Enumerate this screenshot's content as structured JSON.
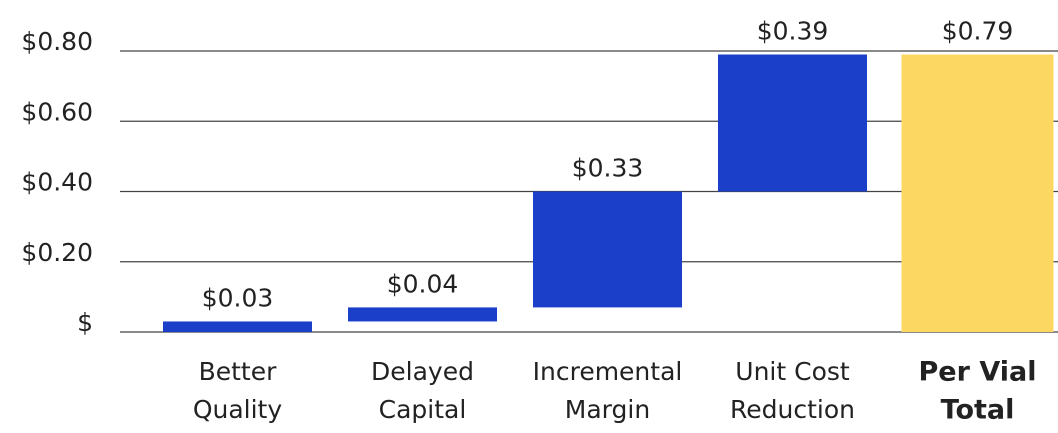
{
  "chart_data": {
    "type": "waterfall",
    "categories": [
      [
        "Better",
        "Quality"
      ],
      [
        "Delayed",
        "Capital"
      ],
      [
        "Incremental",
        "Margin"
      ],
      [
        "Unit Cost",
        "Reduction"
      ],
      [
        "Per Vial",
        "Total"
      ]
    ],
    "values": [
      0.03,
      0.04,
      0.33,
      0.39,
      0.79
    ],
    "value_labels": [
      "$0.03",
      "$0.04",
      "$0.33",
      "$0.39",
      "$0.79"
    ],
    "totals": [
      false,
      false,
      false,
      false,
      true
    ],
    "colors": [
      "#1c3fca",
      "#1c3fca",
      "#1c3fca",
      "#1c3fca",
      "#fcd862"
    ],
    "ylim": [
      0,
      0.8
    ],
    "yticks": [
      {
        "value": 0,
        "label": "$"
      },
      {
        "value": 0.2,
        "label": "$0.20"
      },
      {
        "value": 0.4,
        "label": "$0.40"
      },
      {
        "value": 0.6,
        "label": "$0.60"
      },
      {
        "value": 0.8,
        "label": "$0.80"
      }
    ],
    "grid": true
  }
}
